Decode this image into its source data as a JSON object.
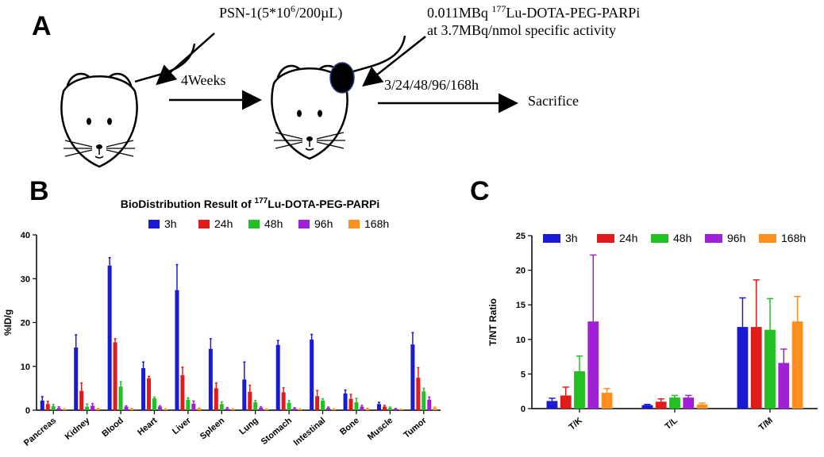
{
  "panels": {
    "a": "A",
    "b": "B",
    "c": "C"
  },
  "schematic": {
    "injection": "PSN-1(5*10",
    "injection_sup": "6",
    "injection_tail": "/200µL)",
    "dose_line1_pre": "0.011MBq ",
    "dose_line1_sup": "177",
    "dose_line1_post": "Lu-DOTA-PEG-PARPi",
    "dose_line2": "at 3.7MBq/nmol specific activity",
    "interval": "4Weeks",
    "timepoints": "3/24/48/96/168h",
    "endpoint": "Sacrifice"
  },
  "colors": {
    "3h": "#1a1ad6",
    "24h": "#e01b1b",
    "48h": "#22c022",
    "96h": "#a020d8",
    "168h": "#ff9020"
  },
  "chart_data": [
    {
      "type": "bar",
      "title_pre": "BioDistribution Result of ",
      "title_sup": "177",
      "title_post": "Lu-DOTA-PEG-PARPi",
      "ylabel": "%ID/g",
      "xlabel": "",
      "ylim": [
        0,
        40
      ],
      "yticks": [
        "0",
        "10",
        "20",
        "30",
        "40"
      ],
      "legend": [
        "3h",
        "24h",
        "48h",
        "96h",
        "168h"
      ],
      "categories": [
        "Pancreas",
        "Kidney",
        "Blood",
        "Heart",
        "Liver",
        "Spleen",
        "Lung",
        "Stomach",
        "Intestinal",
        "Bone",
        "Muscle",
        "Tumor"
      ],
      "series": [
        {
          "name": "3h",
          "values": [
            2.2,
            14.3,
            33.0,
            9.6,
            27.4,
            14.0,
            7.0,
            14.9,
            16.1,
            3.8,
            1.4,
            15.0
          ],
          "errors": [
            0.9,
            2.9,
            1.8,
            1.4,
            5.8,
            2.3,
            4.0,
            1.0,
            1.2,
            0.8,
            0.4,
            2.7
          ]
        },
        {
          "name": "24h",
          "values": [
            1.4,
            4.4,
            15.5,
            7.3,
            8.0,
            5.0,
            4.2,
            4.1,
            3.2,
            2.6,
            0.8,
            7.4
          ],
          "errors": [
            0.6,
            1.8,
            0.8,
            0.4,
            1.8,
            1.2,
            1.5,
            1.0,
            1.3,
            1.0,
            0.3,
            2.3
          ]
        },
        {
          "name": "48h",
          "values": [
            0.9,
            0.8,
            5.4,
            2.7,
            2.4,
            1.4,
            1.8,
            1.7,
            2.2,
            1.8,
            0.5,
            4.3
          ],
          "errors": [
            0.4,
            0.6,
            1.1,
            0.3,
            0.4,
            0.5,
            0.4,
            0.5,
            0.4,
            0.9,
            0.2,
            0.7
          ]
        },
        {
          "name": "96h",
          "values": [
            0.5,
            1.0,
            0.8,
            0.8,
            1.5,
            0.4,
            0.6,
            0.4,
            0.5,
            0.8,
            0.3,
            2.4
          ],
          "errors": [
            0.3,
            0.5,
            0.2,
            0.2,
            0.6,
            0.2,
            0.2,
            0.2,
            0.2,
            0.3,
            0.1,
            0.6
          ]
        },
        {
          "name": "168h",
          "values": [
            0.2,
            0.3,
            0.3,
            0.2,
            0.4,
            0.2,
            0.2,
            0.2,
            0.2,
            0.3,
            0.1,
            0.5
          ],
          "errors": [
            0.1,
            0.1,
            0.1,
            0.1,
            0.1,
            0.1,
            0.1,
            0.1,
            0.1,
            0.1,
            0.1,
            0.2
          ]
        }
      ]
    },
    {
      "type": "bar",
      "title": "",
      "ylabel": "T/NT Ratio",
      "xlabel": "",
      "ylim": [
        0,
        25
      ],
      "yticks": [
        "0",
        "5",
        "10",
        "15",
        "20",
        "25"
      ],
      "legend": [
        "3h",
        "24h",
        "48h",
        "96h",
        "168h"
      ],
      "categories": [
        "T/K",
        "T/L",
        "T/M"
      ],
      "series": [
        {
          "name": "3h",
          "values": [
            1.1,
            0.5,
            11.8
          ],
          "errors": [
            0.4,
            0.1,
            4.2
          ]
        },
        {
          "name": "24h",
          "values": [
            1.9,
            1.0,
            11.8
          ],
          "errors": [
            1.2,
            0.4,
            6.8
          ]
        },
        {
          "name": "48h",
          "values": [
            5.4,
            1.6,
            11.4
          ],
          "errors": [
            2.2,
            0.3,
            4.5
          ]
        },
        {
          "name": "96h",
          "values": [
            12.6,
            1.6,
            6.6
          ],
          "errors": [
            9.6,
            0.3,
            2.0
          ]
        },
        {
          "name": "168h",
          "values": [
            2.3,
            0.6,
            12.6
          ],
          "errors": [
            0.6,
            0.2,
            3.6
          ]
        }
      ]
    }
  ]
}
